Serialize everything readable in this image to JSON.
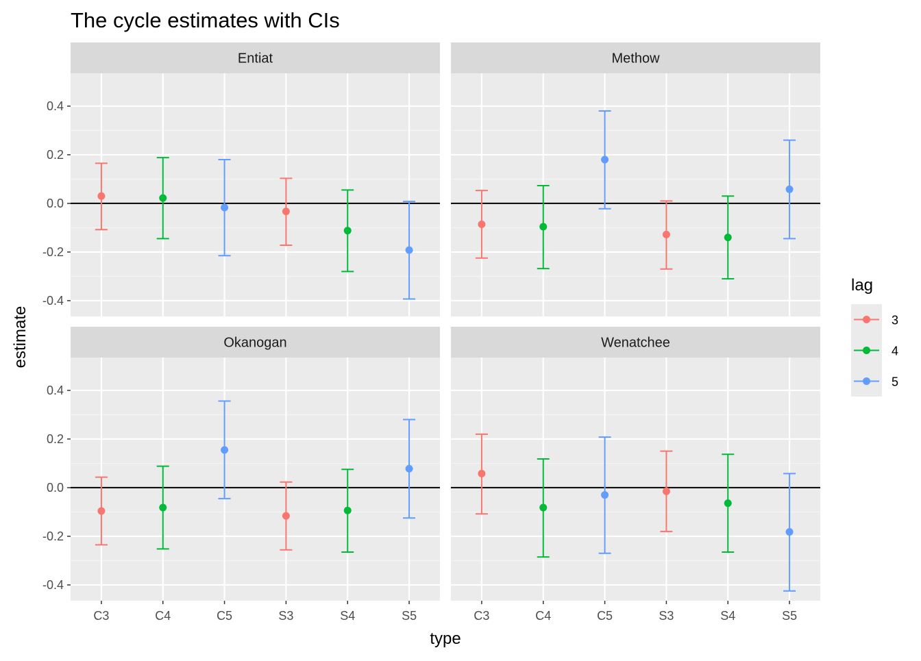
{
  "chart_data": {
    "type": "scatter",
    "title": "The cycle estimates with CIs",
    "xlabel": "type",
    "ylabel": "estimate",
    "categories": [
      "C3",
      "C4",
      "C5",
      "S3",
      "S4",
      "S5"
    ],
    "y_ticks": [
      -0.4,
      -0.2,
      0.0,
      0.2,
      0.4
    ],
    "y_tick_labels": [
      "-0.4",
      "-0.2",
      "0.0",
      "0.2",
      "0.4"
    ],
    "ylim": [
      -0.465,
      0.535
    ],
    "reference_line": 0.0,
    "grid": true,
    "legend": {
      "title": "lag",
      "placement": "right",
      "entries": [
        {
          "label": "3",
          "color": "#F8766D"
        },
        {
          "label": "4",
          "color": "#00BA38"
        },
        {
          "label": "5",
          "color": "#619CFF"
        }
      ]
    },
    "category_lag": [
      "3",
      "4",
      "5",
      "3",
      "4",
      "5"
    ],
    "facets": [
      {
        "name": "Entiat",
        "estimate": [
          0.03,
          0.022,
          -0.017,
          -0.033,
          -0.112,
          -0.192
        ],
        "lower": [
          -0.108,
          -0.145,
          -0.215,
          -0.172,
          -0.28,
          -0.393
        ],
        "upper": [
          0.165,
          0.188,
          0.18,
          0.103,
          0.055,
          0.008
        ]
      },
      {
        "name": "Methow",
        "estimate": [
          -0.086,
          -0.096,
          0.18,
          -0.128,
          -0.14,
          0.058
        ],
        "lower": [
          -0.225,
          -0.268,
          -0.022,
          -0.27,
          -0.31,
          -0.145
        ],
        "upper": [
          0.053,
          0.073,
          0.38,
          0.01,
          0.03,
          0.26
        ]
      },
      {
        "name": "Okanogan",
        "estimate": [
          -0.096,
          -0.082,
          0.155,
          -0.116,
          -0.094,
          0.078
        ],
        "lower": [
          -0.235,
          -0.252,
          -0.045,
          -0.256,
          -0.265,
          -0.125
        ],
        "upper": [
          0.043,
          0.088,
          0.356,
          0.023,
          0.075,
          0.28
        ]
      },
      {
        "name": "Wenatchee",
        "estimate": [
          0.058,
          -0.082,
          -0.03,
          -0.015,
          -0.064,
          -0.182
        ],
        "lower": [
          -0.108,
          -0.285,
          -0.27,
          -0.18,
          -0.265,
          -0.425
        ],
        "upper": [
          0.22,
          0.118,
          0.208,
          0.15,
          0.137,
          0.058
        ]
      }
    ]
  },
  "colors": {
    "panel_background": "#EBEBEB",
    "strip_background": "#D9D9D9",
    "grid_major": "#FFFFFF",
    "grid_minor": "#F5F5F5",
    "reference_line": "#000000"
  }
}
